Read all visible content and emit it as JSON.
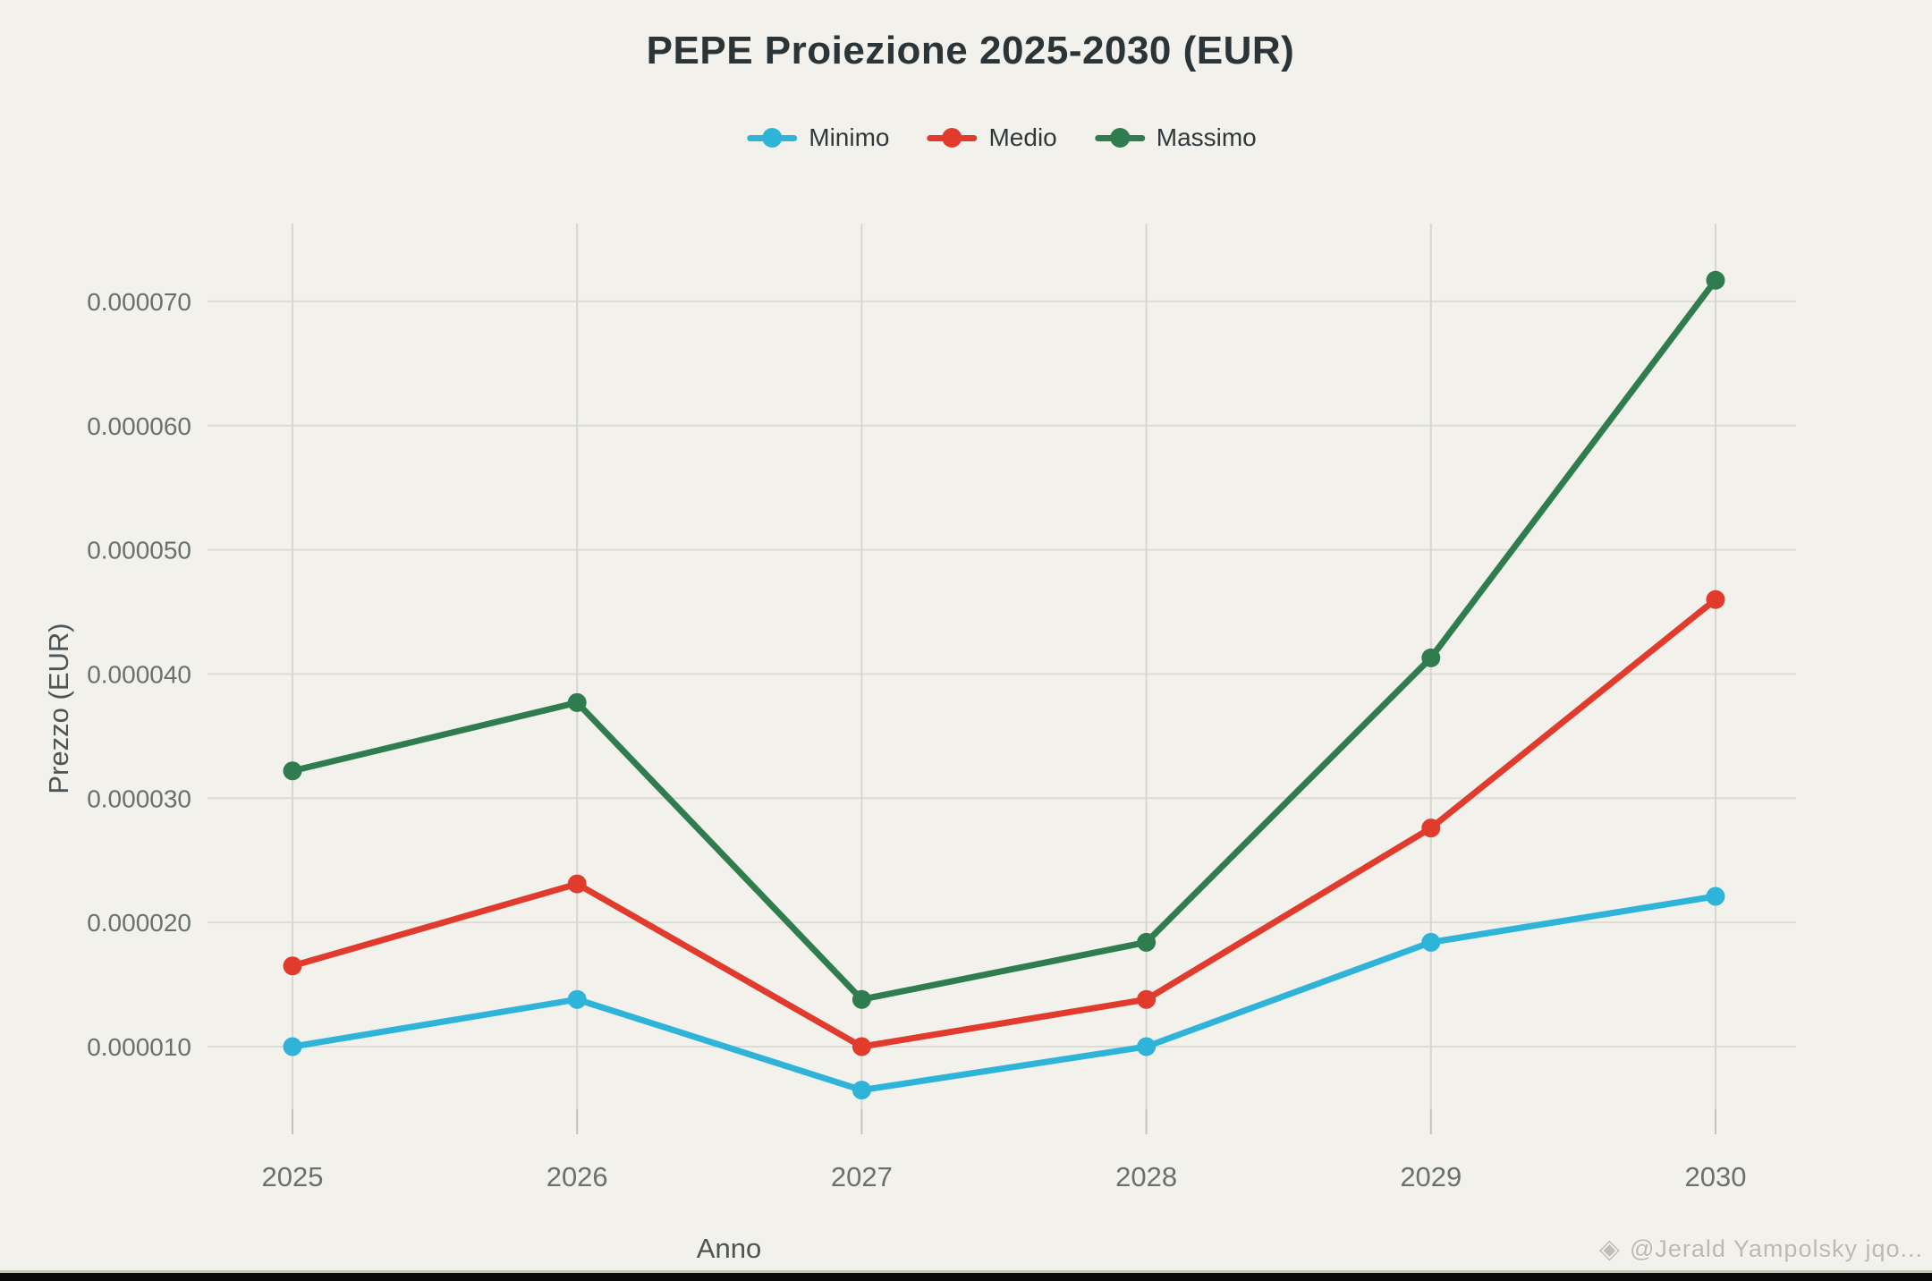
{
  "title": "PEPE Proiezione 2025-2030 (EUR)",
  "axes": {
    "x_title": "Anno",
    "y_title": "Prezzo (EUR)",
    "x_tick_labels": [
      "2025",
      "2026",
      "2027",
      "2028",
      "2029",
      "2030"
    ],
    "y_tick_labels": [
      "0.000010",
      "0.000020",
      "0.000030",
      "0.000040",
      "0.000050",
      "0.000060",
      "0.000070"
    ]
  },
  "chart_data": {
    "type": "line",
    "title": "PEPE Proiezione 2025-2030 (EUR)",
    "xlabel": "Anno",
    "ylabel": "Prezzo (EUR)",
    "x": [
      2025,
      2026,
      2027,
      2028,
      2029,
      2030
    ],
    "series": [
      {
        "name": "Minimo",
        "color": "#2fb4d9",
        "values": [
          1e-05,
          1.38e-05,
          6.5e-06,
          1e-05,
          1.84e-05,
          2.21e-05
        ]
      },
      {
        "name": "Medio",
        "color": "#e13b2e",
        "values": [
          1.65e-05,
          2.31e-05,
          1e-05,
          1.38e-05,
          2.76e-05,
          4.6e-05
        ]
      },
      {
        "name": "Massimo",
        "color": "#2f7c4f",
        "values": [
          3.22e-05,
          3.77e-05,
          1.38e-05,
          1.84e-05,
          4.13e-05,
          7.17e-05
        ]
      }
    ],
    "yticks": [
      1e-05,
      2e-05,
      3e-05,
      4e-05,
      5e-05,
      6e-05,
      7e-05
    ],
    "ylim": [
      5e-06,
      7.6e-05
    ],
    "grid": true,
    "legend_position": "top"
  },
  "footer": {
    "watermark_icon": "◈",
    "watermark_text": "@Jerald Yampolsky jqo..."
  },
  "ui_colors": {
    "background": "#f2f1eb",
    "grid_horizontal": "#dcdbd5",
    "grid_vertical": "#d7d6d1",
    "tick_mark": "#c2c2bd",
    "tick_text": "#68716f",
    "axis_title_text": "#4b5457",
    "title_text": "#2b3538",
    "footer_bar": "#0a0a0a",
    "footer_divider": "#c3c7ba",
    "watermark_text": "#a4a296"
  }
}
